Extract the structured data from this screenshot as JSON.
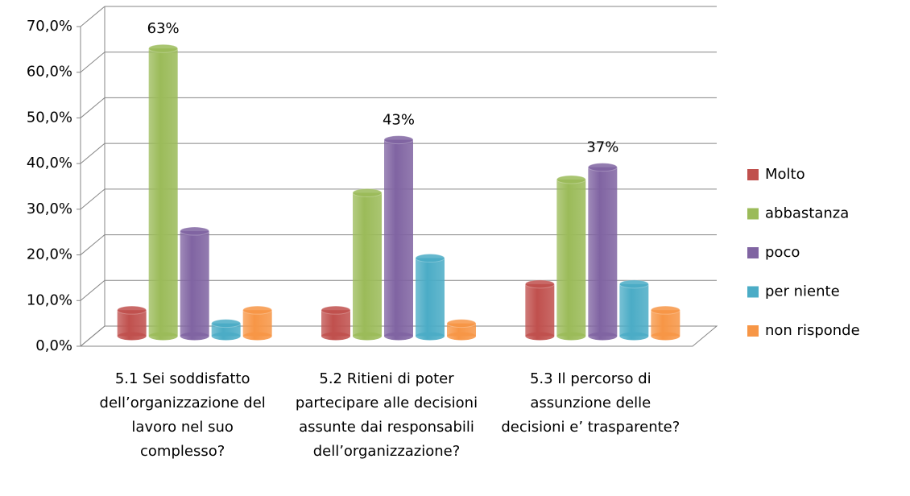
{
  "chart_data": {
    "type": "bar3d",
    "categories": [
      "5.1  Sei soddisfatto dell’organizzazione del lavoro nel suo complesso?",
      "5.2  Ritieni di poter partecipare alle decisioni assunte dai responsabili dell’organizzazione?",
      "5.3  Il percorso di assunzione delle decisioni e’ trasparente?"
    ],
    "series": [
      {
        "name": "Molto",
        "color": "#c0504d",
        "values": [
          5.7,
          5.7,
          11.4
        ]
      },
      {
        "name": "abbastanza",
        "color": "#9bbb59",
        "values": [
          63,
          31.4,
          34.3
        ],
        "value_labels": [
          "63%",
          null,
          null
        ]
      },
      {
        "name": "poco",
        "color": "#8064a2",
        "values": [
          23,
          43,
          37
        ],
        "value_labels": [
          null,
          "43%",
          "37%"
        ]
      },
      {
        "name": "per niente",
        "color": "#4bacc6",
        "values": [
          2.8,
          17.1,
          11.4
        ]
      },
      {
        "name": "non risponde",
        "color": "#f79646",
        "values": [
          5.7,
          2.8,
          5.7
        ]
      }
    ],
    "ylim": [
      0,
      70
    ],
    "yticks": [
      {
        "value": 0,
        "label": "0,0%"
      },
      {
        "value": 10,
        "label": "10,0%"
      },
      {
        "value": 20,
        "label": "20,0%"
      },
      {
        "value": 30,
        "label": "30,0%"
      },
      {
        "value": 40,
        "label": "40,0%"
      },
      {
        "value": 50,
        "label": "50,0%"
      },
      {
        "value": 60,
        "label": "60,0%"
      },
      {
        "value": 70,
        "label": "70,0%"
      }
    ],
    "grid": true,
    "legend": "right"
  }
}
